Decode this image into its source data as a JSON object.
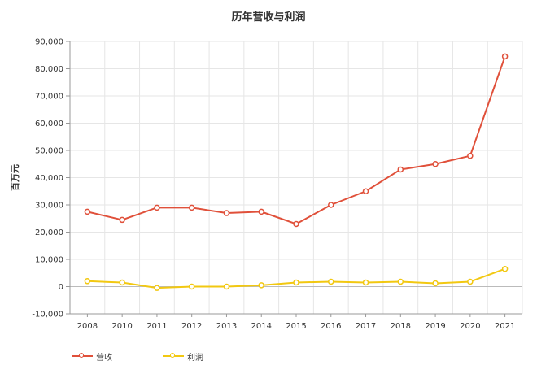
{
  "chart_data": {
    "type": "line",
    "title": "历年营收与利润",
    "ylabel": "百万元",
    "xlabel": "",
    "categories": [
      "2008",
      "2010",
      "2011",
      "2012",
      "2013",
      "2014",
      "2015",
      "2016",
      "2017",
      "2018",
      "2019",
      "2020",
      "2021"
    ],
    "ylim": [
      -10000,
      90000
    ],
    "yticks": [
      -10000,
      0,
      10000,
      20000,
      30000,
      40000,
      50000,
      60000,
      70000,
      80000,
      90000
    ],
    "ytick_labels": [
      "-10,000",
      "0",
      "10,000",
      "20,000",
      "30,000",
      "40,000",
      "50,000",
      "60,000",
      "70,000",
      "80,000",
      "90,000"
    ],
    "grid": true,
    "legend_position": "bottom-left",
    "series": [
      {
        "name": "营收",
        "color": "#e0503a",
        "values": [
          27500,
          24500,
          29000,
          29000,
          27000,
          27500,
          23000,
          30000,
          35000,
          43000,
          45000,
          48000,
          84500
        ]
      },
      {
        "name": "利润",
        "color": "#f2c811",
        "values": [
          2000,
          1500,
          -500,
          0,
          0,
          500,
          1500,
          1800,
          1500,
          1800,
          1200,
          1800,
          6500
        ]
      }
    ]
  }
}
